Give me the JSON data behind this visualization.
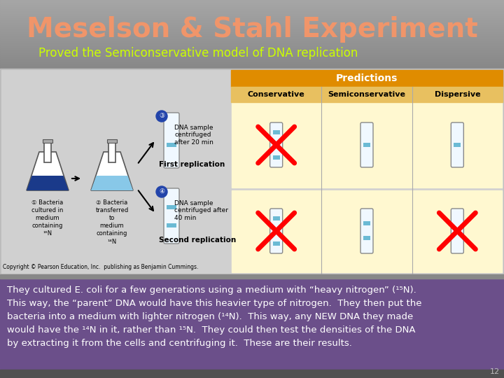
{
  "title": "Meselson & Stahl Experiment",
  "title_color": "#F0956A",
  "subtitle": "Proved the Semiconservative model of DNA replication",
  "subtitle_color": "#CCFF00",
  "bottom_box_bg": "#6B4F8A",
  "bottom_text_color": "#FFFFFF",
  "bottom_text_line1": "They cultured E. coli for a few generations using a medium with “heavy nitrogen” (¹⁵N).",
  "bottom_text_line2": "This way, the “parent” DNA would have this heavier type of nitrogen.  They then put the",
  "bottom_text_line3": "bacteria into a medium with lighter nitrogen (¹⁴N).  This way, any NEW DNA they made",
  "bottom_text_line4": "would have the ¹⁴N in it, rather than ¹⁵N.  They could then test the densities of the DNA",
  "bottom_text_line5": "by extracting it from the cells and centrifuging it.  These are their results.",
  "page_number": "12",
  "bg_gray_top": "#999999",
  "bg_gray_bottom": "#6A6A6A",
  "image_bg": "#C0C0C0",
  "yellow_cell": "#FFF8D0",
  "predictions_orange": "#E08C00",
  "band_color": "#6BBAD4"
}
